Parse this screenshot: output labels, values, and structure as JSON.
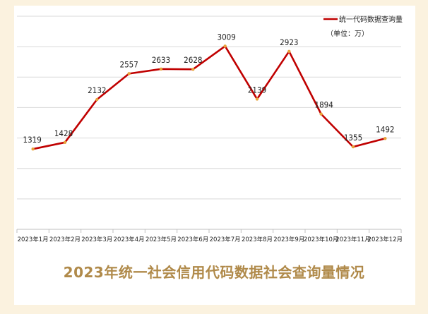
{
  "chart_data": {
    "type": "line",
    "title": "2023年统一社会信用代码数据社会查询量情况",
    "unit_note": "（单位：万）",
    "categories": [
      "2023年1月",
      "2023年2月",
      "2023年3月",
      "2023年4月",
      "2023年5月",
      "2023年6月",
      "2023年7月",
      "2023年8月",
      "2023年9月",
      "2023年10月",
      "2023年11月",
      "2023年12月"
    ],
    "series": [
      {
        "name": "统一代码数据查询量",
        "values": [
          1319,
          1428,
          2132,
          2557,
          2633,
          2628,
          3009,
          2139,
          2923,
          1894,
          1355,
          1492
        ],
        "color": "#c00000",
        "marker_color": "#e8a33a"
      }
    ],
    "ylim": [
      0,
      3500
    ],
    "grid": true,
    "legend_position": "top-right",
    "background_color": "#fbf2df",
    "title_color": "#b08a4a"
  }
}
